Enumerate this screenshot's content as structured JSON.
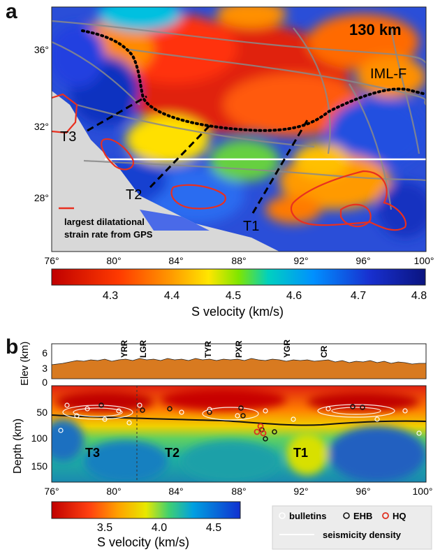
{
  "panel_a": {
    "label": "a",
    "depth_label": "130 km",
    "fault_label": "IML-F",
    "profile_labels": [
      "T3",
      "T2",
      "T1"
    ],
    "lat_ticks": [
      "36°",
      "32°",
      "28°"
    ],
    "lon_ticks": [
      "76°",
      "80°",
      "84°",
      "88°",
      "92°",
      "96°",
      "100°"
    ],
    "strain_legend": [
      "largest dilatational",
      "strain rate from GPS"
    ],
    "colorbar": {
      "ticks": [
        "4.3",
        "4.4",
        "4.5",
        "4.6",
        "4.7",
        "4.8"
      ],
      "title": "S velocity (km/s)"
    }
  },
  "panel_b": {
    "label": "b",
    "elev_label": "Elev (km)",
    "elev_ticks": [
      "6",
      "3",
      "0"
    ],
    "depth_label": "Depth (km)",
    "depth_ticks": [
      "50",
      "100",
      "150"
    ],
    "station_labels": [
      "YRR",
      "LGR",
      "TYR",
      "PXR",
      "YGR",
      "CR"
    ],
    "section_labels": [
      "T3",
      "T2",
      "T1"
    ],
    "lon_ticks": [
      "76°",
      "80°",
      "84°",
      "88°",
      "92°",
      "96°",
      "100°"
    ],
    "colorbar": {
      "ticks": [
        "3.5",
        "4.0",
        "4.5"
      ],
      "title": "S velocity (km/s)"
    },
    "legend": {
      "bulletins": "bulletins",
      "ehb": "EHB",
      "hq": "HQ",
      "density": "seismicity density"
    },
    "colors": {
      "bulletins": "#ffffff",
      "ehb": "#111111",
      "hq": "#e03020"
    }
  }
}
